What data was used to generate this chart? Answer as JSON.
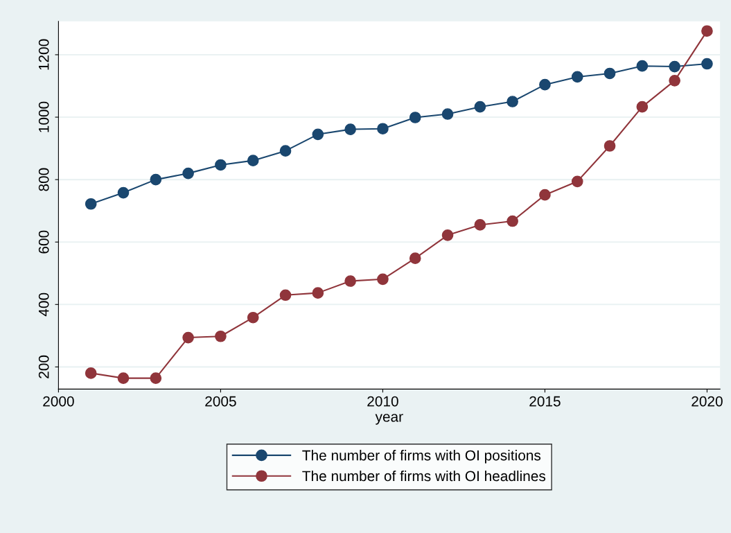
{
  "chart_data": {
    "type": "line",
    "xlabel": "year",
    "x": [
      2001,
      2002,
      2003,
      2004,
      2005,
      2006,
      2007,
      2008,
      2009,
      2010,
      2011,
      2012,
      2013,
      2014,
      2015,
      2016,
      2017,
      2018,
      2019,
      2020
    ],
    "series": [
      {
        "name": "The number of firms with OI positions",
        "color": "#1a476f",
        "values": [
          722,
          758,
          800,
          820,
          847,
          861,
          892,
          945,
          961,
          963,
          999,
          1010,
          1033,
          1050,
          1104,
          1129,
          1140,
          1164,
          1162,
          1171
        ]
      },
      {
        "name": "The number of firms with OI headlines",
        "color": "#90353b",
        "values": [
          180,
          164,
          164,
          294,
          298,
          358,
          430,
          437,
          475,
          481,
          548,
          622,
          655,
          667,
          751,
          794,
          908,
          1033,
          1117,
          1276
        ]
      }
    ],
    "xlim": [
      2000,
      2020.4
    ],
    "xticks": [
      2000,
      2005,
      2010,
      2015,
      2020
    ],
    "ylim": [
      129,
      1307
    ],
    "yticks": [
      200,
      400,
      600,
      800,
      1000,
      1200
    ],
    "grid": "y",
    "legend": "bottom",
    "marker": "circle",
    "line_style": "solid"
  }
}
